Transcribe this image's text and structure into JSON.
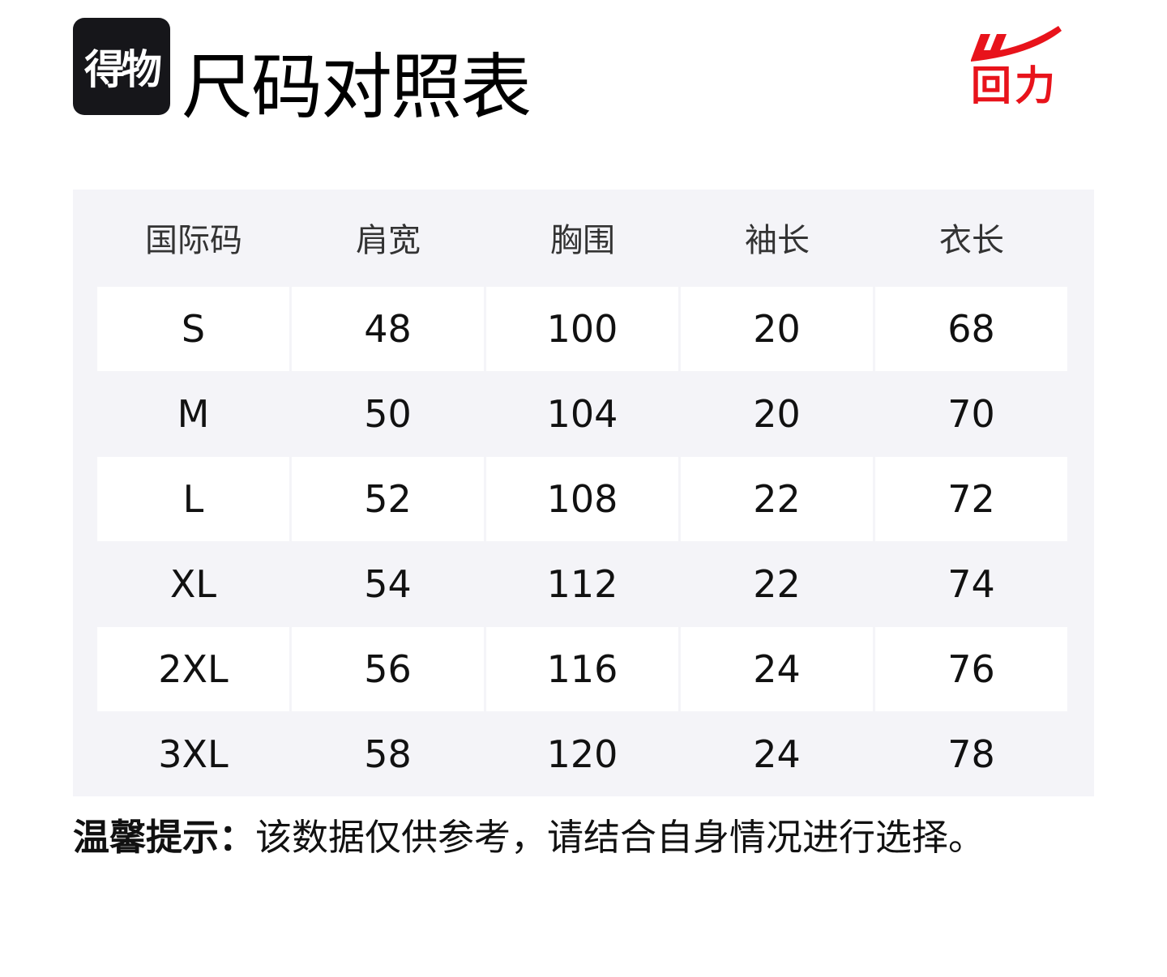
{
  "logo": {
    "app_name": "得物"
  },
  "title": "尺码对照表",
  "brand": {
    "name": "回力",
    "color": "#e8131b"
  },
  "table": {
    "headers": [
      "国际码",
      "肩宽",
      "胸围",
      "袖长",
      "衣长"
    ],
    "rows": [
      [
        "S",
        "48",
        "100",
        "20",
        "68"
      ],
      [
        "M",
        "50",
        "104",
        "20",
        "70"
      ],
      [
        "L",
        "52",
        "108",
        "22",
        "72"
      ],
      [
        "XL",
        "54",
        "112",
        "22",
        "74"
      ],
      [
        "2XL",
        "56",
        "116",
        "24",
        "76"
      ],
      [
        "3XL",
        "58",
        "120",
        "24",
        "78"
      ]
    ]
  },
  "note": {
    "label": "温馨提示：",
    "text": "该数据仅供参考，请结合自身情况进行选择。"
  }
}
